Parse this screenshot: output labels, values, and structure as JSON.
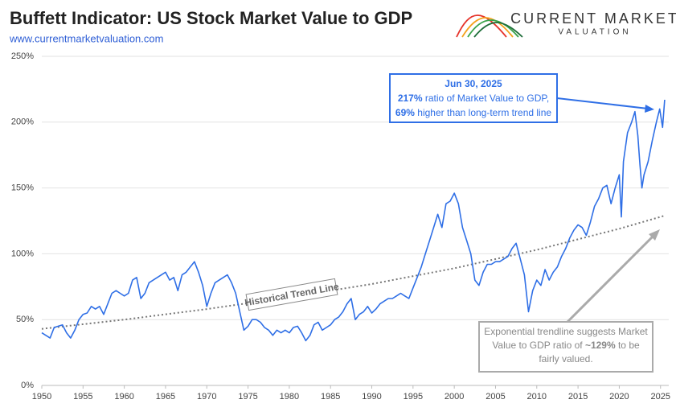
{
  "chart_data": {
    "type": "line",
    "title": "Buffett Indicator: US Stock Market Value to GDP",
    "subtitle": "www.currentmarketvaluation.com",
    "brand": [
      "CURRENT MARKET",
      "VALUATION"
    ],
    "xlim": [
      1950,
      2026
    ],
    "xticks": [
      1950,
      1955,
      1960,
      1965,
      1970,
      1975,
      1980,
      1985,
      1990,
      1995,
      2000,
      2005,
      2010,
      2015,
      2020,
      2025
    ],
    "ylim": [
      0,
      250
    ],
    "yticks": [
      {
        "value": 0,
        "label": "0%"
      },
      {
        "value": 50,
        "label": "50%"
      },
      {
        "value": 100,
        "label": "100%"
      },
      {
        "value": 150,
        "label": "150%"
      },
      {
        "value": 200,
        "label": "200%"
      },
      {
        "value": 250,
        "label": "250%"
      }
    ],
    "grid": true,
    "series": [
      {
        "color": "#2f6fe6",
        "dashed": false,
        "x": [
          1950,
          1950.5,
          1951,
          1951.5,
          1952,
          1952.5,
          1953,
          1953.5,
          1954,
          1954.5,
          1955,
          1955.5,
          1956,
          1956.5,
          1957,
          1957.5,
          1958,
          1958.5,
          1959,
          1959.5,
          1960,
          1960.5,
          1961,
          1961.5,
          1962,
          1962.5,
          1963,
          1963.5,
          1964,
          1964.5,
          1965,
          1965.5,
          1966,
          1966.5,
          1967,
          1967.5,
          1968,
          1968.5,
          1969,
          1969.5,
          1970,
          1970.5,
          1971,
          1971.5,
          1972,
          1972.5,
          1973,
          1973.5,
          1974,
          1974.5,
          1975,
          1975.5,
          1976,
          1976.5,
          1977,
          1977.5,
          1978,
          1978.5,
          1979,
          1979.5,
          1980,
          1980.5,
          1981,
          1981.5,
          1982,
          1982.5,
          1983,
          1983.5,
          1984,
          1984.5,
          1985,
          1985.5,
          1986,
          1986.5,
          1987,
          1987.5,
          1988,
          1988.5,
          1989,
          1989.5,
          1990,
          1990.5,
          1991,
          1991.5,
          1992,
          1992.5,
          1993,
          1993.5,
          1994,
          1994.5,
          1995,
          1995.5,
          1996,
          1996.5,
          1997,
          1997.5,
          1998,
          1998.5,
          1999,
          1999.5,
          2000,
          2000.5,
          2001,
          2001.5,
          2002,
          2002.5,
          2003,
          2003.5,
          2004,
          2004.5,
          2005,
          2005.5,
          2006,
          2006.5,
          2007,
          2007.5,
          2008,
          2008.5,
          2009,
          2009.5,
          2010,
          2010.5,
          2011,
          2011.5,
          2012,
          2012.5,
          2013,
          2013.5,
          2014,
          2014.5,
          2015,
          2015.5,
          2016,
          2016.5,
          2017,
          2017.5,
          2018,
          2018.5,
          2019,
          2019.5,
          2020,
          2020.25,
          2020.5,
          2021,
          2021.5,
          2021.9,
          2022.25,
          2022.5,
          2022.75,
          2023,
          2023.5,
          2024,
          2024.5,
          2024.9,
          2025.25,
          2025.5
        ],
        "values": [
          40,
          38,
          36,
          44,
          45,
          46,
          40,
          36,
          42,
          50,
          54,
          55,
          60,
          58,
          60,
          54,
          62,
          70,
          72,
          70,
          68,
          70,
          80,
          82,
          66,
          70,
          78,
          80,
          82,
          84,
          86,
          80,
          82,
          72,
          84,
          86,
          90,
          94,
          86,
          76,
          60,
          70,
          78,
          80,
          82,
          84,
          78,
          70,
          56,
          42,
          45,
          50,
          50,
          48,
          44,
          42,
          38,
          42,
          40,
          42,
          40,
          44,
          45,
          40,
          34,
          38,
          46,
          48,
          42,
          44,
          46,
          50,
          52,
          56,
          62,
          66,
          50,
          54,
          56,
          60,
          55,
          58,
          62,
          64,
          66,
          66,
          68,
          70,
          68,
          66,
          74,
          82,
          90,
          100,
          110,
          120,
          130,
          120,
          138,
          140,
          146,
          138,
          120,
          110,
          100,
          80,
          76,
          86,
          92,
          92,
          94,
          94,
          96,
          98,
          104,
          108,
          96,
          84,
          56,
          72,
          80,
          76,
          88,
          80,
          86,
          90,
          98,
          104,
          112,
          118,
          122,
          120,
          114,
          124,
          136,
          142,
          150,
          152,
          138,
          150,
          160,
          128,
          170,
          192,
          200,
          208,
          190,
          168,
          150,
          160,
          170,
          186,
          200,
          210,
          196,
          217
        ]
      },
      {
        "color": "#777777",
        "dashed": true,
        "x": [
          1950,
          1960,
          1970,
          1980,
          1990,
          2000,
          2010,
          2020,
          2025.5
        ],
        "values": [
          43,
          50,
          58,
          67,
          77,
          89,
          103,
          119,
          129
        ]
      }
    ],
    "annotations": {
      "trend_label": "Historical Trend Line",
      "callout_top": [
        [
          {
            "text": "Jun 30, 2025",
            "bold": true
          }
        ],
        [
          {
            "text": "217%",
            "bold": true
          },
          {
            "text": " ratio of Market Value to GDP,",
            "bold": false
          }
        ],
        [
          {
            "text": "69%",
            "bold": true
          },
          {
            "text": " higher than long-term trend line",
            "bold": false
          }
        ]
      ],
      "callout_bottom": [
        [
          {
            "text": "Exponential trendline suggests Market",
            "bold": false
          }
        ],
        [
          {
            "text": "Value to GDP ratio of ",
            "bold": false
          },
          {
            "text": "~129%",
            "bold": true
          },
          {
            "text": " to be",
            "bold": false
          }
        ],
        [
          {
            "text": "fairly valued.",
            "bold": false
          }
        ]
      ]
    }
  }
}
